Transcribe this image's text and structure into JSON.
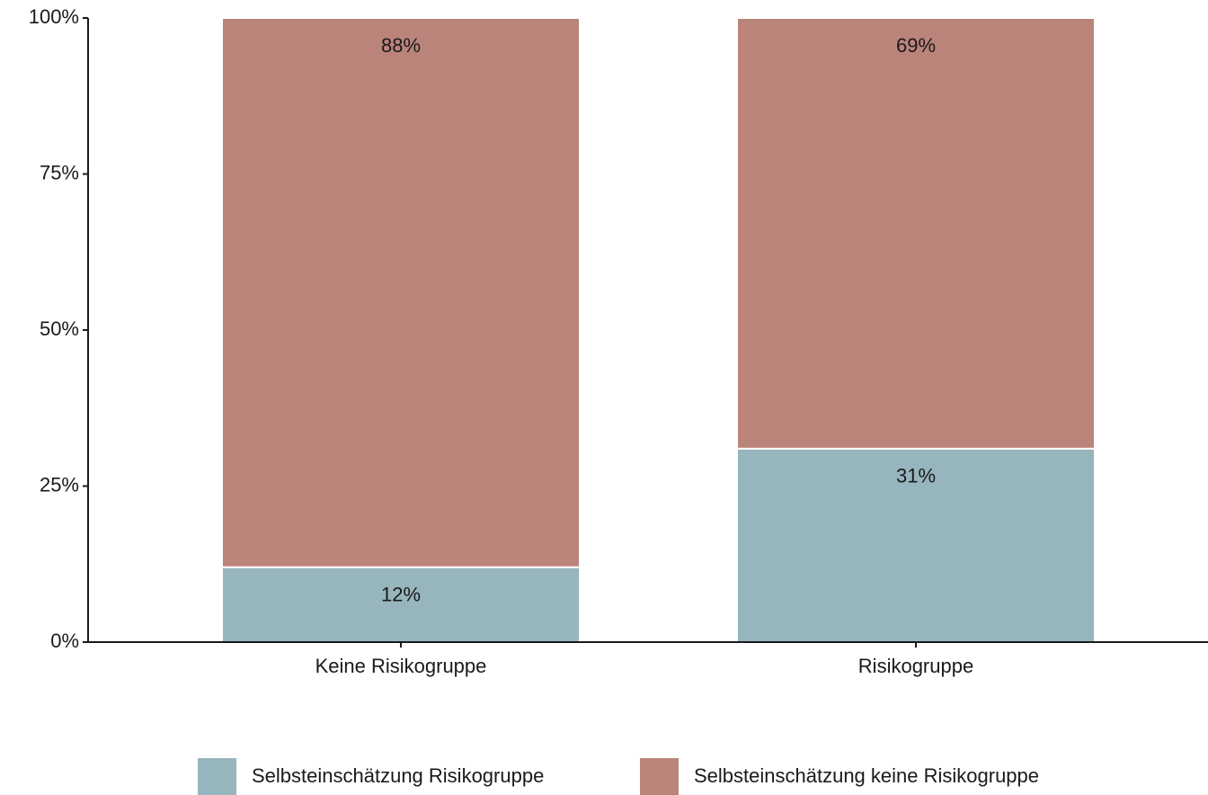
{
  "chart_data": {
    "type": "stacked_bar",
    "categories": [
      "Keine Risikogruppe",
      "Risikogruppe"
    ],
    "series": [
      {
        "name": "Selbsteinschätzung Risikogruppe",
        "color": "#97b5bd",
        "values": [
          12,
          31
        ],
        "value_labels": [
          "12%",
          "31%"
        ]
      },
      {
        "name": "Selbsteinschätzung keine Risikogruppe",
        "color": "#bb847b",
        "values": [
          88,
          69
        ],
        "value_labels": [
          "88%",
          "69%"
        ]
      }
    ],
    "ylim": [
      0,
      100
    ],
    "yticks": [
      {
        "value": 0,
        "label": "0%"
      },
      {
        "value": 25,
        "label": "25%"
      },
      {
        "value": 50,
        "label": "50%"
      },
      {
        "value": 75,
        "label": "75%"
      },
      {
        "value": 100,
        "label": "100%"
      }
    ],
    "legend": "bottom"
  }
}
